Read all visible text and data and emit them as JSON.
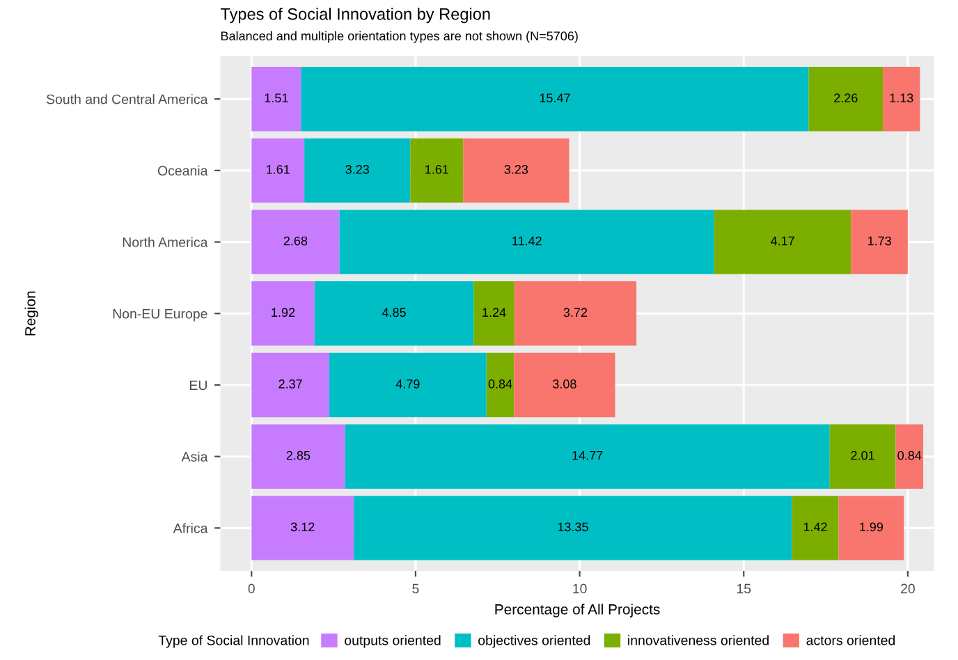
{
  "chart_data": {
    "type": "bar",
    "orientation": "horizontal",
    "stacked": true,
    "title": "Types of Social Innovation by Region",
    "subtitle": "Balanced and multiple orientation types are not shown (N=5706)",
    "xlabel": "Percentage of All Projects",
    "ylabel": "Region",
    "legend_title": "Type of Social Innovation",
    "categories": [
      "South and Central America",
      "Oceania",
      "North America",
      "Non-EU Europe",
      "EU",
      "Asia",
      "Africa"
    ],
    "series": [
      {
        "name": "outputs oriented",
        "color": "#c77cff",
        "values": [
          1.51,
          1.61,
          2.68,
          1.92,
          2.37,
          2.85,
          3.12
        ]
      },
      {
        "name": "objectives oriented",
        "color": "#00bfc4",
        "values": [
          15.47,
          3.23,
          11.42,
          4.85,
          4.79,
          14.77,
          13.35
        ]
      },
      {
        "name": "innovativeness oriented",
        "color": "#7cae00",
        "values": [
          2.26,
          1.61,
          4.17,
          1.24,
          0.84,
          2.01,
          1.42
        ]
      },
      {
        "name": "actors oriented",
        "color": "#f8766d",
        "values": [
          1.13,
          3.23,
          1.73,
          3.72,
          3.08,
          0.84,
          1.99
        ]
      }
    ],
    "xlim": [
      -0.95,
      20.8
    ],
    "xticks": [
      0,
      5,
      10,
      15,
      20
    ],
    "grid": true,
    "legend": "bottom",
    "data_labels": true
  }
}
